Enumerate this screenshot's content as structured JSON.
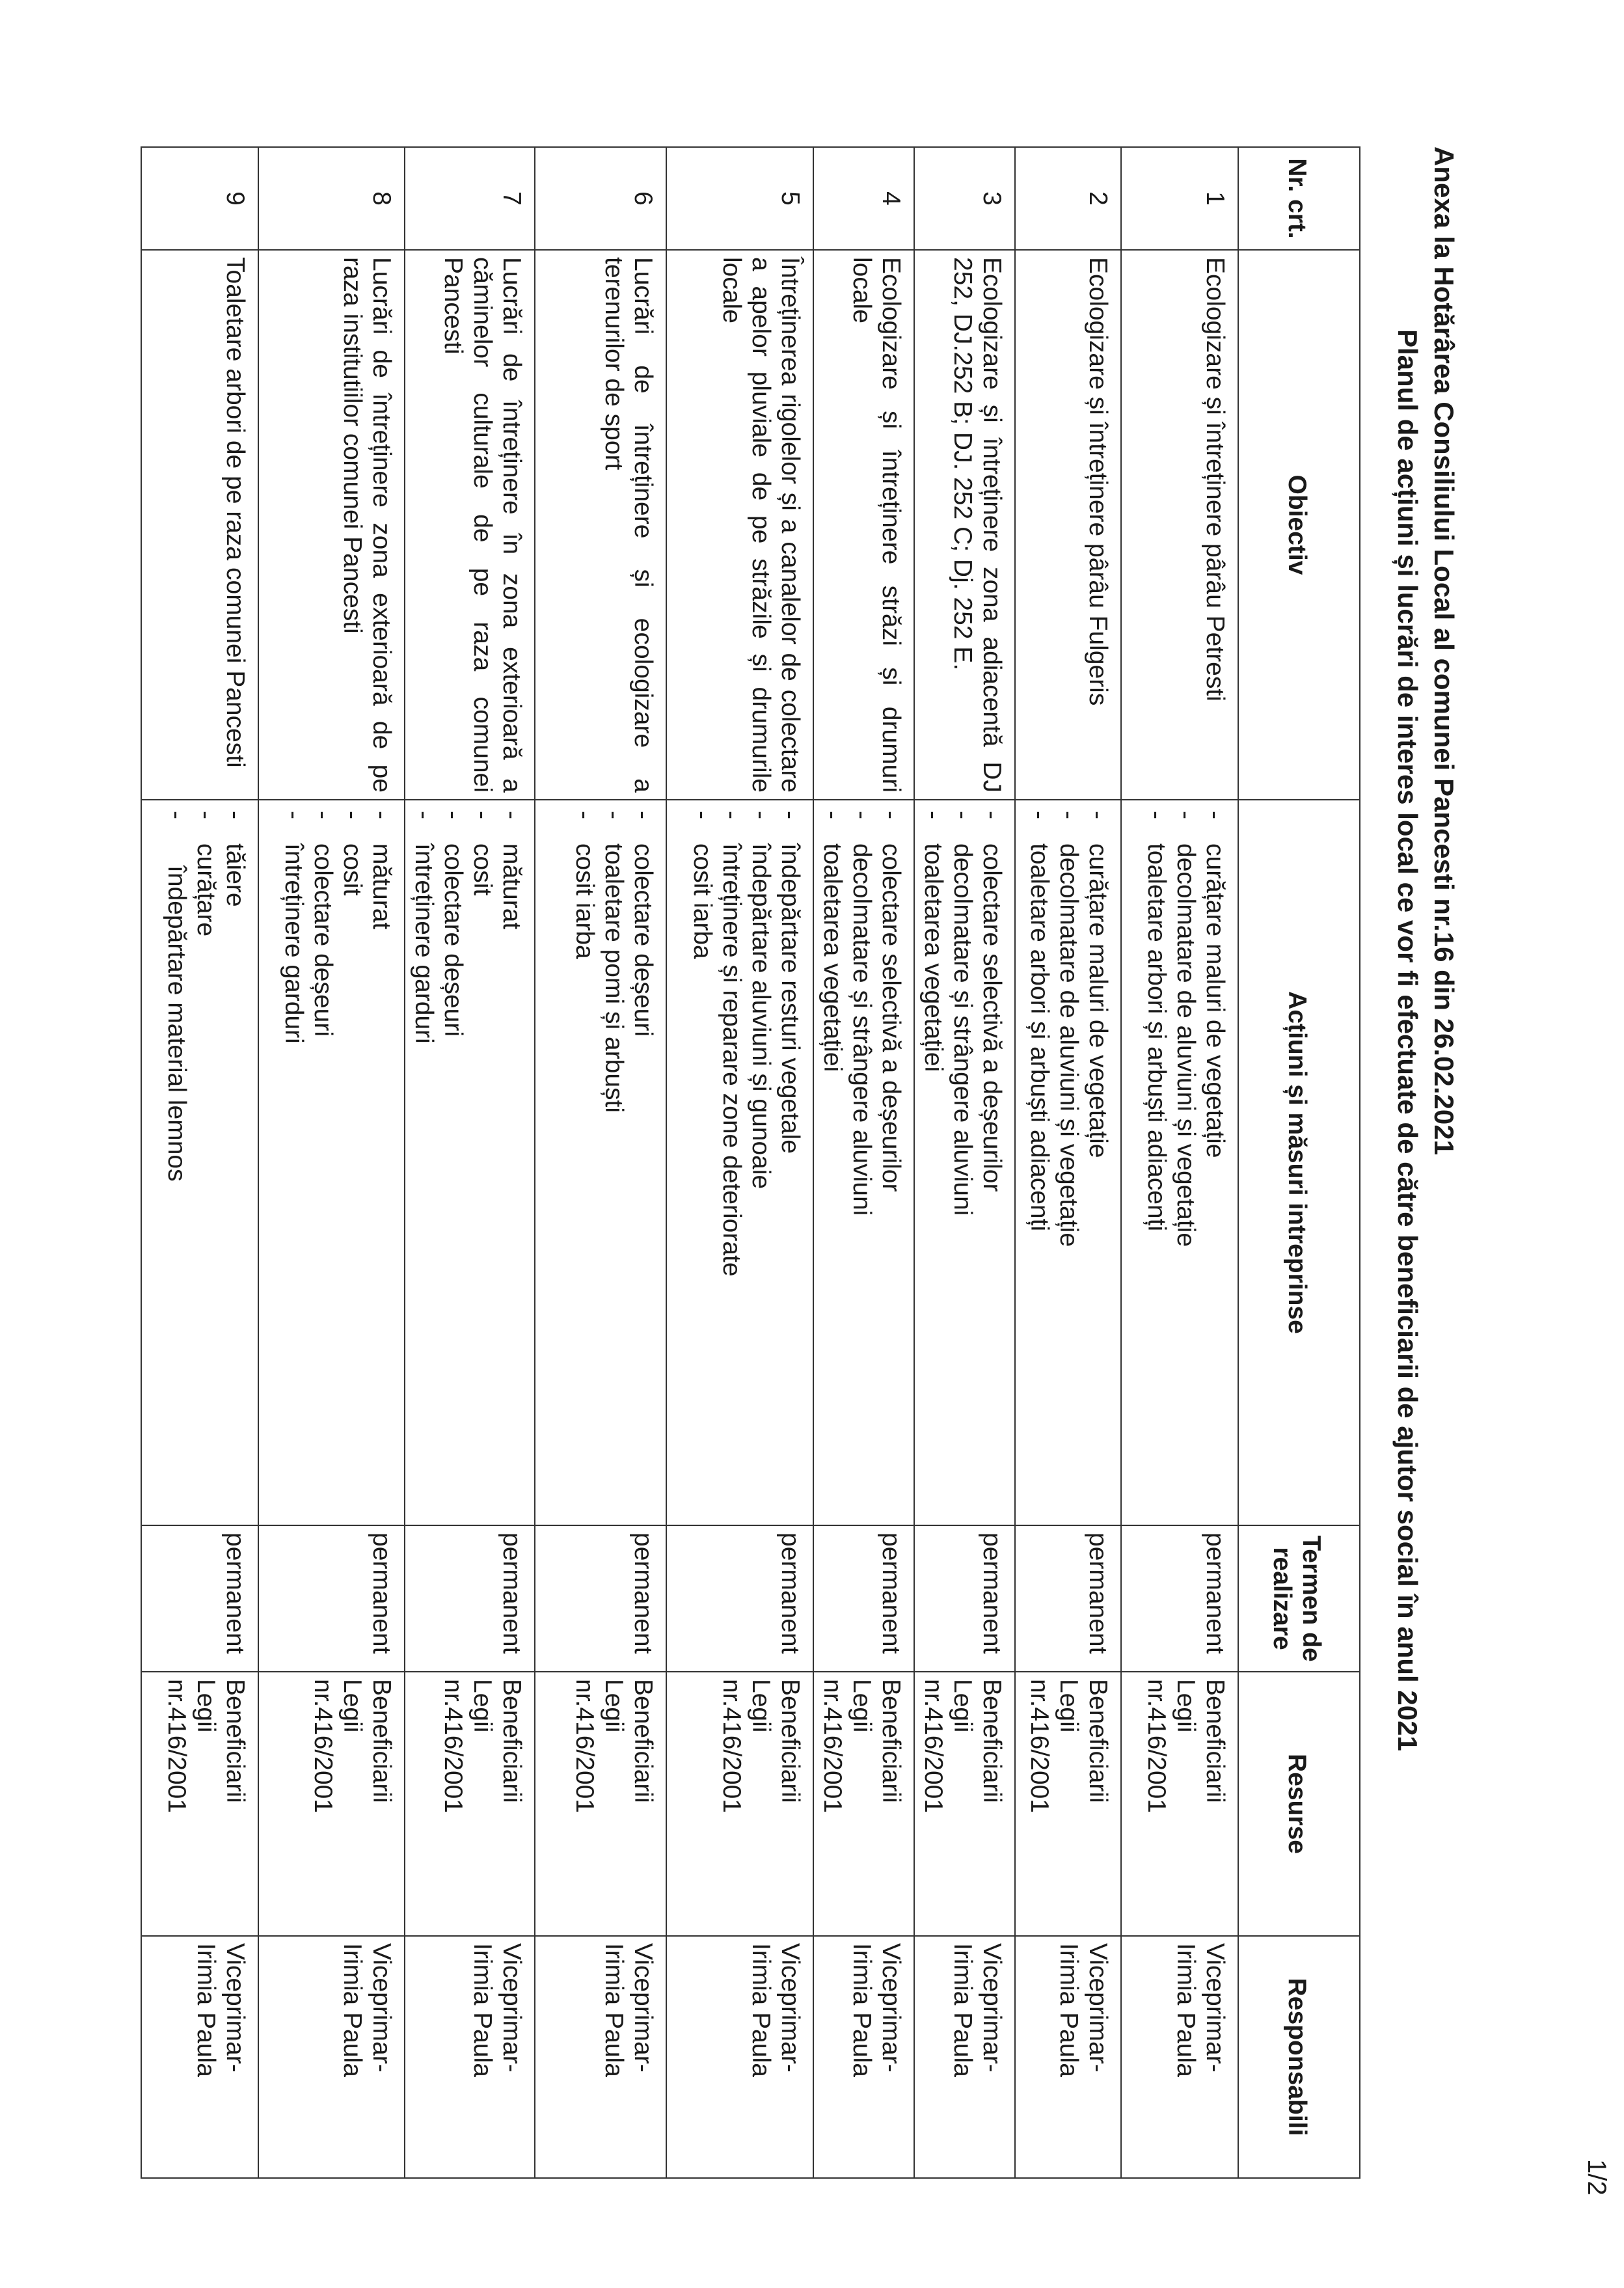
{
  "page_number": "1/2",
  "title": "Anexa la Hotărârea Consiliului Local al comunei Pancesti nr.16  din  26.02.2021",
  "subtitle": "Planul de acțiuni și lucrări de interes local ce vor fi efectuate de către beneficiarii de ajutor social în anul 2021",
  "table": {
    "headers": [
      "Nr. crt.",
      "Obiectiv",
      "Acțiuni și măsuri intreprinse",
      "Termen de realizare",
      "Resurse",
      "Responsabili"
    ],
    "rows": [
      {
        "nr": "1",
        "obiectiv": "Ecologizare și întreținere pârâu Petresti",
        "actiuni": [
          "curățare maluri de vegetație",
          "decolmatare de aluviuni și vegetație",
          "toaletare arbori și arbuști adiacenți"
        ],
        "termen": "permanent",
        "resurse": [
          "Beneficiarii",
          "Legii",
          "nr.416/2001"
        ],
        "responsabili": [
          "Viceprimar-",
          "Irimia Paula"
        ]
      },
      {
        "nr": "2",
        "obiectiv": "Ecologizare și întreținere pârâu Fulgeris",
        "actiuni": [
          "curățare maluri de vegetație",
          "decolmatare de aluviuni și vegetație",
          "toaletare arbori și arbuști adiacenți"
        ],
        "termen": "permanent",
        "resurse": [
          "Beneficiarii",
          "Legii",
          "nr.416/2001"
        ],
        "responsabili": [
          "Viceprimar-",
          "Irimia Paula"
        ]
      },
      {
        "nr": "3",
        "obiectiv": "Ecologizare și întreținere zona adiacentă DJ 252, DJ.252 B; DJ. 252 C; Dj. 252 E.",
        "actiuni": [
          "colectare selectivă a deșeurilor",
          "decolmatare și strângere aluviuni",
          "toaletarea vegetației"
        ],
        "termen": "permanent",
        "resurse": [
          "Beneficiarii",
          "Legii",
          "nr.416/2001"
        ],
        "responsabili": [
          "Viceprimar-",
          "Irimia Paula"
        ]
      },
      {
        "nr": "4",
        "obiectiv": "Ecologizare și întreținere străzi și drumuri locale",
        "actiuni": [
          "colectare selectivă a deșeurilor",
          "decolmatare și strângere aluviuni",
          "toaletarea vegetației"
        ],
        "termen": "permanent",
        "resurse": [
          "Beneficiarii",
          "Legii",
          "nr.416/2001"
        ],
        "responsabili": [
          "Viceprimar-",
          "Irimia Paula"
        ]
      },
      {
        "nr": "5",
        "obiectiv": "Întreținerea rigolelor și a canalelor de colectare a apelor pluviale de pe străzile și drumurile locale",
        "actiuni": [
          "îndepărtare resturi vegetale",
          "îndepărtare aluviuni și gunoaie",
          "întreținere și reparare zone deteriorate",
          "cosit iarba"
        ],
        "termen": "permanent",
        "resurse": [
          "Beneficiarii",
          "Legii",
          "nr.416/2001"
        ],
        "responsabili": [
          "Viceprimar-",
          "Irimia Paula"
        ]
      },
      {
        "nr": "6",
        "obiectiv": "Lucrări de întreținere și ecologizare a terenurilor de sport",
        "actiuni": [
          "colectare deșeuri",
          "toaletare pomi și arbuști",
          "cosit iarba"
        ],
        "termen": "permanent",
        "resurse": [
          "Beneficiarii",
          "Legii",
          "nr.416/2001"
        ],
        "responsabili": [
          "Viceprimar-",
          "Irimia Paula"
        ]
      },
      {
        "nr": "7",
        "obiectiv": "Lucrări de întreținere în zona exterioară a căminelor culturale de pe raza comunei Pancesti",
        "actiuni": [
          "măturat",
          "cosit",
          "colectare deșeuri",
          "întreținere garduri"
        ],
        "termen": "permanent",
        "resurse": [
          "Beneficiarii",
          "Legii",
          "nr.416/2001"
        ],
        "responsabili": [
          "Viceprimar-",
          "Irimia Paula"
        ]
      },
      {
        "nr": "8",
        "obiectiv": "Lucrări de întreținere zona exterioară de pe raza institutiilor comunei Pancesti",
        "actiuni": [
          "măturat",
          "cosit",
          "colectare deșeuri",
          "întreținere garduri"
        ],
        "termen": "permanent",
        "resurse": [
          "Beneficiarii",
          "Legii",
          "nr.416/2001"
        ],
        "responsabili": [
          "Viceprimar-",
          "Irimia Paula"
        ]
      },
      {
        "nr": "9",
        "obiectiv": "Toaletare arbori de pe raza comunei Pancesti",
        "actiuni": [
          "tăiere",
          "curățare",
          "îndepărtare material lemnos"
        ],
        "termen": "permanent",
        "resurse": [
          "Beneficiarii",
          "Legii",
          "nr.416/2001"
        ],
        "responsabili": [
          "Viceprimar-",
          "Irimia Paula"
        ]
      }
    ]
  }
}
